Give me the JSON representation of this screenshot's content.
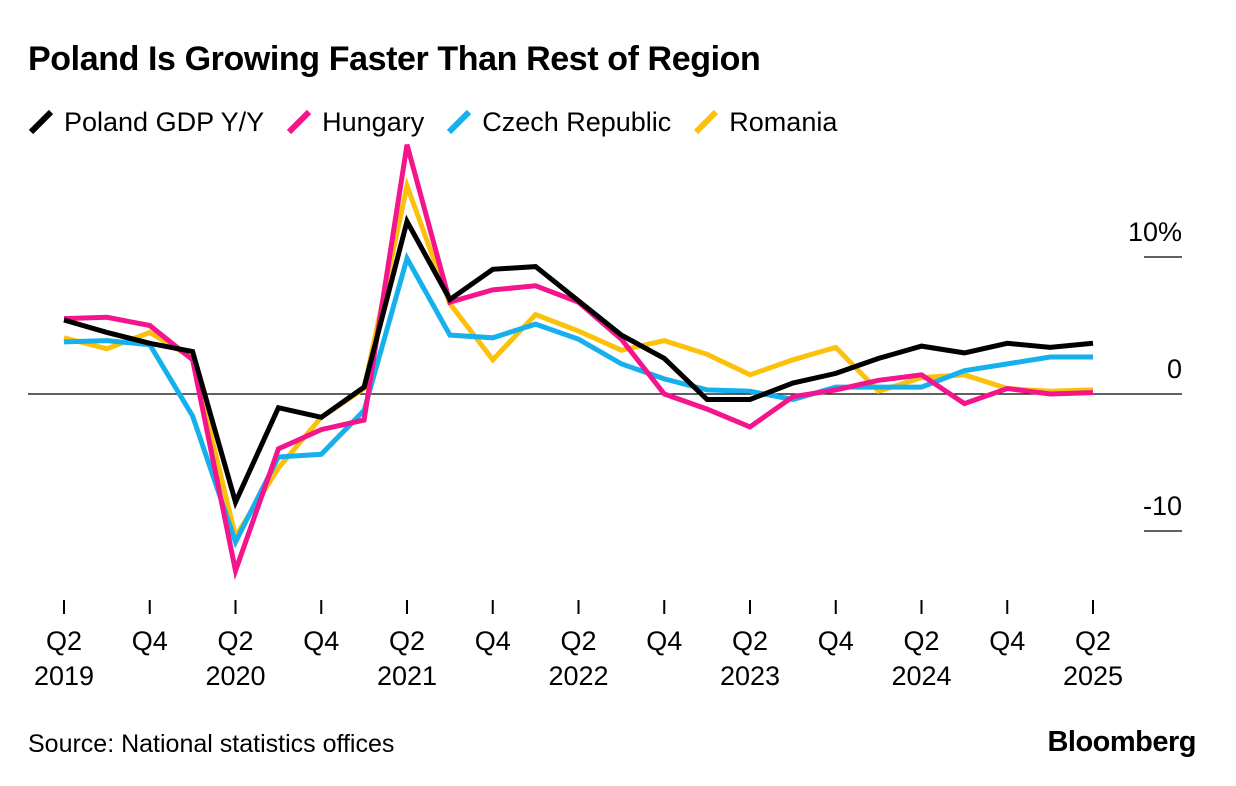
{
  "title": "Poland Is Growing Faster Than Rest of Region",
  "source": "Source: National statistics offices",
  "brand": "Bloomberg",
  "chart_data": {
    "type": "line",
    "title": "Poland Is Growing Faster Than Rest of Region",
    "xlabel": "",
    "ylabel": "",
    "ylim": [
      -15,
      18
    ],
    "grid": false,
    "legend": "top-left",
    "x": [
      "Q2 2019",
      "Q3 2019",
      "Q4 2019",
      "Q1 2020",
      "Q2 2020",
      "Q3 2020",
      "Q4 2020",
      "Q1 2021",
      "Q2 2021",
      "Q3 2021",
      "Q4 2021",
      "Q1 2022",
      "Q2 2022",
      "Q3 2022",
      "Q4 2022",
      "Q1 2023",
      "Q2 2023",
      "Q3 2023",
      "Q4 2023",
      "Q1 2024",
      "Q2 2024",
      "Q3 2024",
      "Q4 2024",
      "Q1 2025",
      "Q2 2025"
    ],
    "x_ticks": [
      {
        "index": 0,
        "q": "Q2",
        "year": "2019"
      },
      {
        "index": 2,
        "q": "Q4",
        "year": ""
      },
      {
        "index": 4,
        "q": "Q2",
        "year": "2020"
      },
      {
        "index": 6,
        "q": "Q4",
        "year": ""
      },
      {
        "index": 8,
        "q": "Q2",
        "year": "2021"
      },
      {
        "index": 10,
        "q": "Q4",
        "year": ""
      },
      {
        "index": 12,
        "q": "Q2",
        "year": "2022"
      },
      {
        "index": 14,
        "q": "Q4",
        "year": ""
      },
      {
        "index": 16,
        "q": "Q2",
        "year": "2023"
      },
      {
        "index": 18,
        "q": "Q4",
        "year": ""
      },
      {
        "index": 20,
        "q": "Q2",
        "year": "2024"
      },
      {
        "index": 22,
        "q": "Q4",
        "year": ""
      },
      {
        "index": 24,
        "q": "Q2",
        "year": "2025"
      }
    ],
    "y_ticks": [
      {
        "value": 10,
        "label": "10%"
      },
      {
        "value": 0,
        "label": "0"
      },
      {
        "value": -10,
        "label": "-10"
      }
    ],
    "series": [
      {
        "name": "Romania",
        "color": "#FCC10B",
        "values": [
          4.1,
          3.3,
          4.5,
          2.6,
          -10.4,
          -5.4,
          -1.7,
          0.4,
          15.2,
          6.6,
          2.5,
          5.8,
          4.6,
          3.2,
          3.9,
          2.9,
          1.4,
          2.5,
          3.4,
          0.2,
          1.2,
          1.4,
          0.4,
          0.2,
          0.3
        ]
      },
      {
        "name": "Czech Republic",
        "color": "#16B0ED",
        "values": [
          3.8,
          3.9,
          3.6,
          -1.6,
          -10.8,
          -4.6,
          -4.4,
          -1.2,
          9.9,
          4.3,
          4.1,
          5.1,
          4.0,
          2.2,
          1.1,
          0.3,
          0.2,
          -0.4,
          0.5,
          0.5,
          0.5,
          1.7,
          2.2,
          2.7,
          2.7
        ]
      },
      {
        "name": "Hungary",
        "color": "#F4148C",
        "values": [
          5.5,
          5.6,
          5.0,
          2.5,
          -12.9,
          -4.0,
          -2.6,
          -1.9,
          18.2,
          6.7,
          7.6,
          7.9,
          6.7,
          4.0,
          0.0,
          -1.1,
          -2.4,
          -0.2,
          0.3,
          1.0,
          1.4,
          -0.7,
          0.4,
          0.0,
          0.1
        ]
      },
      {
        "name": "Poland GDP Y/Y",
        "color": "#000000",
        "values": [
          5.4,
          4.5,
          3.7,
          3.1,
          -7.9,
          -1.0,
          -1.7,
          0.5,
          12.6,
          6.9,
          9.1,
          9.3,
          6.8,
          4.3,
          2.6,
          -0.4,
          -0.4,
          0.8,
          1.5,
          2.6,
          3.5,
          3.0,
          3.7,
          3.4,
          3.7
        ]
      }
    ]
  }
}
